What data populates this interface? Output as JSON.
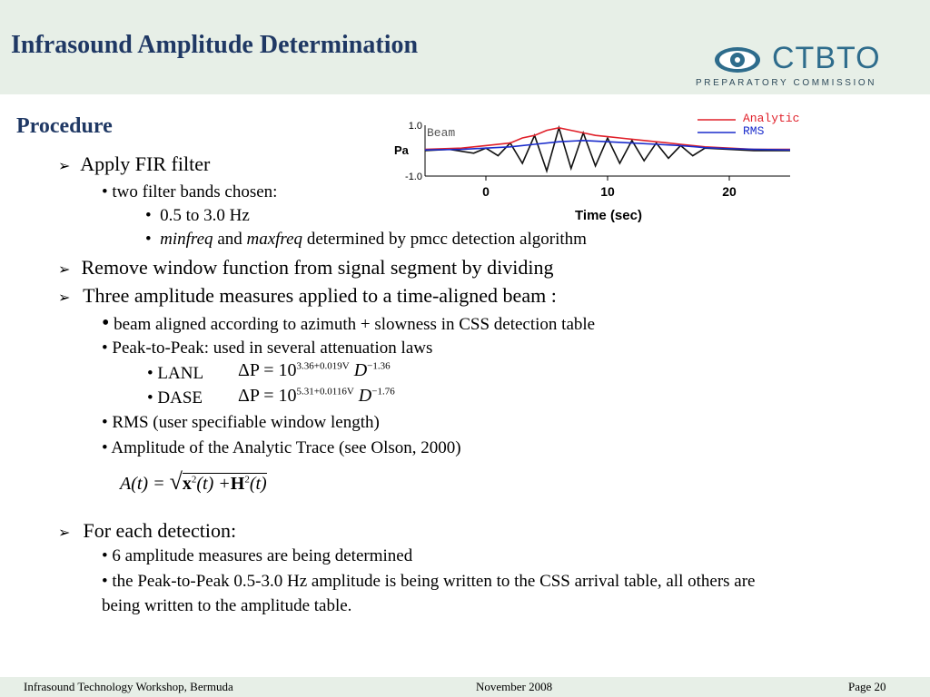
{
  "header": {
    "title": "Infrasound Amplitude Determination"
  },
  "logo": {
    "name": "CTBTO",
    "subtitle": "PREPARATORY COMMISSION"
  },
  "procedure_heading": "Procedure",
  "content": {
    "fir": {
      "label": "Apply FIR filter",
      "bands": "• two filter bands chosen:",
      "band1": "0.5 to 3.0 Hz",
      "band2_a": "minfreq",
      "band2_b": " and ",
      "band2_c": "maxfreq",
      "band2_d": " determined by pmcc detection algorithm"
    },
    "remove": "Remove window function from signal segment by dividing",
    "three": "Three amplitude measures applied to a time-aligned beam :",
    "beam_aligned": "beam aligned according to azimuth + slowness in CSS detection table",
    "p2p": "• Peak-to-Peak: used in several attenuation laws",
    "lanl": "• LANL",
    "dase": "• DASE",
    "rms": "• RMS (user specifiable window length)",
    "analytic": "• Amplitude of the Analytic Trace (see Olson, 2000)",
    "each": "For each detection:",
    "six": "• 6 amplitude measures are being determined",
    "writ1": "• the Peak-to-Peak 0.5-3.0 Hz amplitude is being written to the CSS arrival table, all others are",
    "writ2": "being written to the amplitude table."
  },
  "formulas": {
    "lanl": {
      "lhs": "ΔP = 10",
      "exp": "3.36+0.019V",
      "d": " D",
      "dexp": "−1.36"
    },
    "dase": {
      "lhs": "ΔP = 10",
      "exp": "5.31+0.0116V",
      "d": " D",
      "dexp": "−1.76"
    },
    "analytic": {
      "lhs": "A(t) = ",
      "x": "x",
      "sq1": "2",
      "mid": "(t) +",
      "h": "H",
      "sq2": "2",
      "end": "(t)"
    }
  },
  "footer": {
    "left": "Infrasound Technology Workshop, Bermuda",
    "center": "November 2008",
    "right": "Page 20"
  },
  "colors": {
    "analytic": "#e0202a",
    "rms": "#1a2ccc",
    "beam": "#111111",
    "title": "#1f3864"
  },
  "chart_data": {
    "type": "line",
    "xlabel": "Time (sec)",
    "ylabel": "Pa",
    "xticks": [
      "0",
      "10",
      "20"
    ],
    "yticks": [
      "1.0",
      "-1.0"
    ],
    "xlim": [
      -5,
      25
    ],
    "ylim": [
      -1.0,
      1.0
    ],
    "legend": "top-right",
    "series": [
      {
        "name": "Beam",
        "x": [
          -5,
          -3,
          -1,
          0,
          1,
          2,
          3,
          4,
          5,
          6,
          7,
          8,
          9,
          10,
          11,
          12,
          13,
          14,
          15,
          16,
          17,
          18,
          20,
          22,
          25
        ],
        "y": [
          0,
          0.05,
          -0.1,
          0.1,
          -0.2,
          0.3,
          -0.5,
          0.6,
          -0.8,
          0.9,
          -0.7,
          0.7,
          -0.6,
          0.5,
          -0.5,
          0.4,
          -0.4,
          0.3,
          -0.3,
          0.2,
          -0.2,
          0.1,
          0.05,
          0,
          0
        ]
      },
      {
        "name": "Analytic",
        "x": [
          -5,
          -2,
          0,
          2,
          3,
          4,
          5,
          6,
          7,
          8,
          9,
          10,
          11,
          12,
          13,
          14,
          15,
          16,
          18,
          20,
          22,
          25
        ],
        "y": [
          0.05,
          0.1,
          0.2,
          0.3,
          0.5,
          0.6,
          0.8,
          0.9,
          0.8,
          0.7,
          0.6,
          0.55,
          0.5,
          0.45,
          0.4,
          0.35,
          0.3,
          0.25,
          0.15,
          0.1,
          0.05,
          0.05
        ]
      },
      {
        "name": "RMS",
        "x": [
          -5,
          -2,
          0,
          2,
          4,
          6,
          8,
          10,
          12,
          14,
          16,
          18,
          20,
          22,
          25
        ],
        "y": [
          0.03,
          0.05,
          0.1,
          0.15,
          0.25,
          0.35,
          0.4,
          0.35,
          0.3,
          0.25,
          0.2,
          0.12,
          0.08,
          0.05,
          0.03
        ]
      }
    ]
  }
}
